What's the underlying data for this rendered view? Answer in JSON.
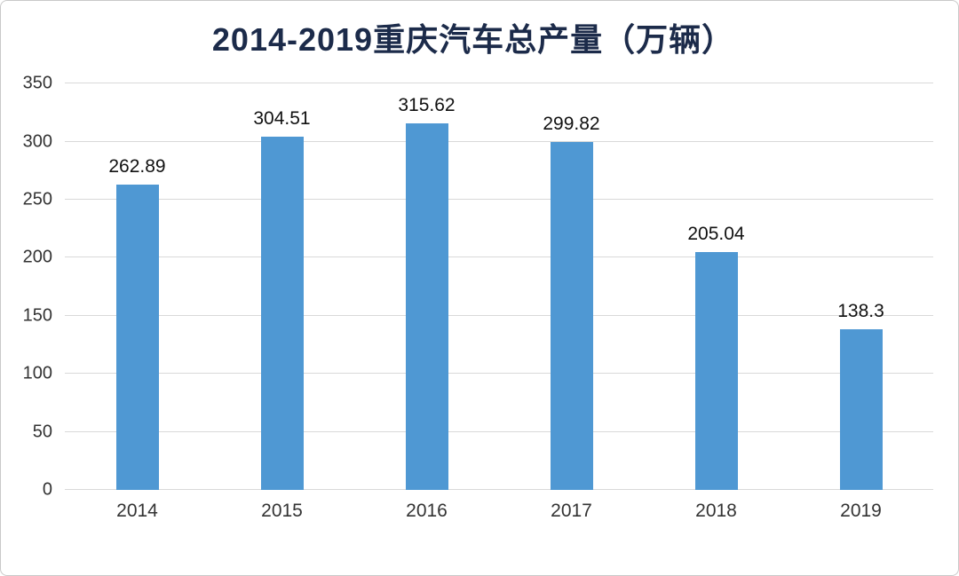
{
  "chart_data": {
    "type": "bar",
    "title": "2014-2019重庆汽车总产量（万辆）",
    "categories": [
      "2014",
      "2015",
      "2016",
      "2017",
      "2018",
      "2019"
    ],
    "values": [
      262.89,
      304.51,
      315.62,
      299.82,
      205.04,
      138.3
    ],
    "value_labels": [
      "262.89",
      "304.51",
      "315.62",
      "299.82",
      "205.04",
      "138.3"
    ],
    "xlabel": "",
    "ylabel": "",
    "ylim": [
      0,
      350
    ],
    "yticks": [
      0,
      50,
      100,
      150,
      200,
      250,
      300,
      350
    ],
    "grid": true,
    "legend_position": "none",
    "colors": {
      "bar": "#4F98D3",
      "title": "#1C2B4A",
      "axis_labels": "#333333",
      "gridline": "#D9D9D9",
      "frame_border": "#C9C9C9",
      "background": "#FFFFFF"
    }
  }
}
